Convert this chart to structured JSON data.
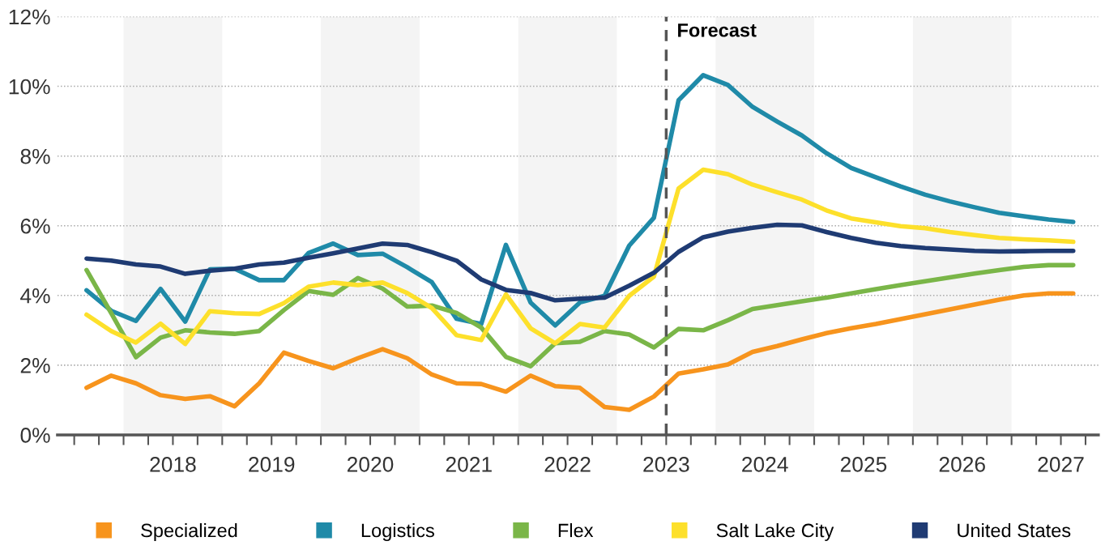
{
  "chart_data": {
    "type": "line",
    "x": [
      2017.625,
      2017.875,
      2018.125,
      2018.375,
      2018.625,
      2018.875,
      2019.125,
      2019.375,
      2019.625,
      2019.875,
      2020.125,
      2020.375,
      2020.625,
      2020.875,
      2021.125,
      2021.375,
      2021.625,
      2021.875,
      2022.125,
      2022.375,
      2022.625,
      2022.875,
      2023.125,
      2023.375,
      2023.625,
      2023.875,
      2024.125,
      2024.375,
      2024.625,
      2024.875,
      2025.125,
      2025.375,
      2025.625,
      2025.875,
      2026.125,
      2026.375,
      2026.625,
      2026.875,
      2027.125,
      2027.375,
      2027.625
    ],
    "series": [
      {
        "name": "Specialized",
        "color": "#f7941d",
        "values": [
          1.35,
          1.7,
          1.48,
          1.14,
          1.03,
          1.11,
          0.82,
          1.48,
          2.36,
          2.12,
          1.91,
          2.2,
          2.46,
          2.2,
          1.73,
          1.48,
          1.46,
          1.24,
          1.7,
          1.4,
          1.35,
          0.8,
          0.72,
          1.1,
          1.76,
          1.88,
          2.02,
          2.38,
          2.55,
          2.74,
          2.92,
          3.06,
          3.18,
          3.32,
          3.46,
          3.6,
          3.74,
          3.88,
          4.0,
          4.06,
          4.06
        ]
      },
      {
        "name": "Logistics",
        "color": "#1f8aa8",
        "values": [
          4.15,
          3.56,
          3.27,
          4.19,
          3.25,
          4.75,
          4.77,
          4.44,
          4.44,
          5.22,
          5.49,
          5.16,
          5.2,
          4.81,
          4.38,
          3.33,
          3.18,
          5.45,
          3.8,
          3.14,
          3.8,
          3.99,
          5.43,
          6.23,
          9.6,
          10.32,
          10.04,
          9.41,
          8.99,
          8.59,
          8.08,
          7.66,
          7.39,
          7.13,
          6.89,
          6.7,
          6.53,
          6.37,
          6.27,
          6.18,
          6.11
        ]
      },
      {
        "name": "Flex",
        "color": "#7ab648",
        "values": [
          4.73,
          3.49,
          2.23,
          2.79,
          3.0,
          2.94,
          2.9,
          2.98,
          3.58,
          4.13,
          4.02,
          4.5,
          4.2,
          3.68,
          3.71,
          3.5,
          3.08,
          2.24,
          1.97,
          2.63,
          2.67,
          2.98,
          2.88,
          2.51,
          3.04,
          3.0,
          3.29,
          3.61,
          3.72,
          3.83,
          3.94,
          4.06,
          4.18,
          4.3,
          4.41,
          4.52,
          4.63,
          4.73,
          4.82,
          4.87,
          4.87
        ]
      },
      {
        "name": "Salt Lake City",
        "color": "#fde02b",
        "values": [
          3.45,
          2.98,
          2.65,
          3.19,
          2.61,
          3.55,
          3.49,
          3.47,
          3.78,
          4.25,
          4.37,
          4.3,
          4.37,
          4.07,
          3.64,
          2.86,
          2.72,
          4.03,
          3.06,
          2.63,
          3.18,
          3.08,
          3.99,
          4.54,
          7.07,
          7.61,
          7.48,
          7.18,
          6.96,
          6.75,
          6.44,
          6.21,
          6.1,
          5.99,
          5.93,
          5.82,
          5.73,
          5.65,
          5.61,
          5.58,
          5.54
        ]
      },
      {
        "name": "United States",
        "color": "#1f3b73",
        "values": [
          5.06,
          5.0,
          4.89,
          4.83,
          4.62,
          4.71,
          4.77,
          4.89,
          4.94,
          5.08,
          5.21,
          5.35,
          5.49,
          5.45,
          5.24,
          5.0,
          4.46,
          4.16,
          4.07,
          3.86,
          3.91,
          3.94,
          4.28,
          4.65,
          5.25,
          5.67,
          5.83,
          5.94,
          6.03,
          6.01,
          5.82,
          5.65,
          5.51,
          5.42,
          5.36,
          5.32,
          5.28,
          5.26,
          5.27,
          5.28,
          5.28
        ]
      }
    ],
    "xlim": [
      2017.33,
      2027.88
    ],
    "xticks": [
      {
        "value": 2017.5,
        "label": null
      },
      {
        "value": 2017.75,
        "label": null
      },
      {
        "value": 2018,
        "label": null
      },
      {
        "value": 2018.25,
        "label": null
      },
      {
        "value": 2018.5,
        "label": "2018"
      },
      {
        "value": 2018.75,
        "label": null
      },
      {
        "value": 2019,
        "label": null
      },
      {
        "value": 2019.25,
        "label": null
      },
      {
        "value": 2019.5,
        "label": "2019"
      },
      {
        "value": 2019.75,
        "label": null
      },
      {
        "value": 2020,
        "label": null
      },
      {
        "value": 2020.25,
        "label": null
      },
      {
        "value": 2020.5,
        "label": "2020"
      },
      {
        "value": 2020.75,
        "label": null
      },
      {
        "value": 2021,
        "label": null
      },
      {
        "value": 2021.25,
        "label": null
      },
      {
        "value": 2021.5,
        "label": "2021"
      },
      {
        "value": 2021.75,
        "label": null
      },
      {
        "value": 2022,
        "label": null
      },
      {
        "value": 2022.25,
        "label": null
      },
      {
        "value": 2022.5,
        "label": "2022"
      },
      {
        "value": 2022.75,
        "label": null
      },
      {
        "value": 2023,
        "label": null
      },
      {
        "value": 2023.25,
        "label": null
      },
      {
        "value": 2023.5,
        "label": "2023"
      },
      {
        "value": 2023.75,
        "label": null
      },
      {
        "value": 2024,
        "label": null
      },
      {
        "value": 2024.25,
        "label": null
      },
      {
        "value": 2024.5,
        "label": "2024"
      },
      {
        "value": 2024.75,
        "label": null
      },
      {
        "value": 2025,
        "label": null
      },
      {
        "value": 2025.25,
        "label": null
      },
      {
        "value": 2025.5,
        "label": "2025"
      },
      {
        "value": 2025.75,
        "label": null
      },
      {
        "value": 2026,
        "label": null
      },
      {
        "value": 2026.25,
        "label": null
      },
      {
        "value": 2026.5,
        "label": "2026"
      },
      {
        "value": 2026.75,
        "label": null
      },
      {
        "value": 2027,
        "label": null
      },
      {
        "value": 2027.25,
        "label": null
      },
      {
        "value": 2027.5,
        "label": "2027"
      },
      {
        "value": 2027.75,
        "label": null
      }
    ],
    "ylim": [
      0,
      12
    ],
    "yticks": [
      {
        "value": 0,
        "label": "0%"
      },
      {
        "value": 2,
        "label": "2%"
      },
      {
        "value": 4,
        "label": "4%"
      },
      {
        "value": 6,
        "label": "6%"
      },
      {
        "value": 8,
        "label": "8%"
      },
      {
        "value": 10,
        "label": "10%"
      },
      {
        "value": 12,
        "label": "12%"
      }
    ],
    "grid": "y",
    "legend": "bottom",
    "marker": "none",
    "line_style": "solid",
    "ref_lines": [
      {
        "axis": "x",
        "value": 2023.5,
        "label": "Forecast",
        "color": "#555555",
        "line_style": "dashed"
      }
    ],
    "bands": [
      {
        "axis": "x",
        "from": 2018,
        "to": 2019,
        "label": null,
        "color": "#f4f4f4"
      },
      {
        "axis": "x",
        "from": 2020,
        "to": 2021,
        "label": null,
        "color": "#f4f4f4"
      },
      {
        "axis": "x",
        "from": 2022,
        "to": 2023,
        "label": null,
        "color": "#f4f4f4"
      },
      {
        "axis": "x",
        "from": 2024,
        "to": 2025,
        "label": null,
        "color": "#f4f4f4"
      },
      {
        "axis": "x",
        "from": 2026,
        "to": 2027,
        "label": null,
        "color": "#f4f4f4"
      }
    ]
  }
}
